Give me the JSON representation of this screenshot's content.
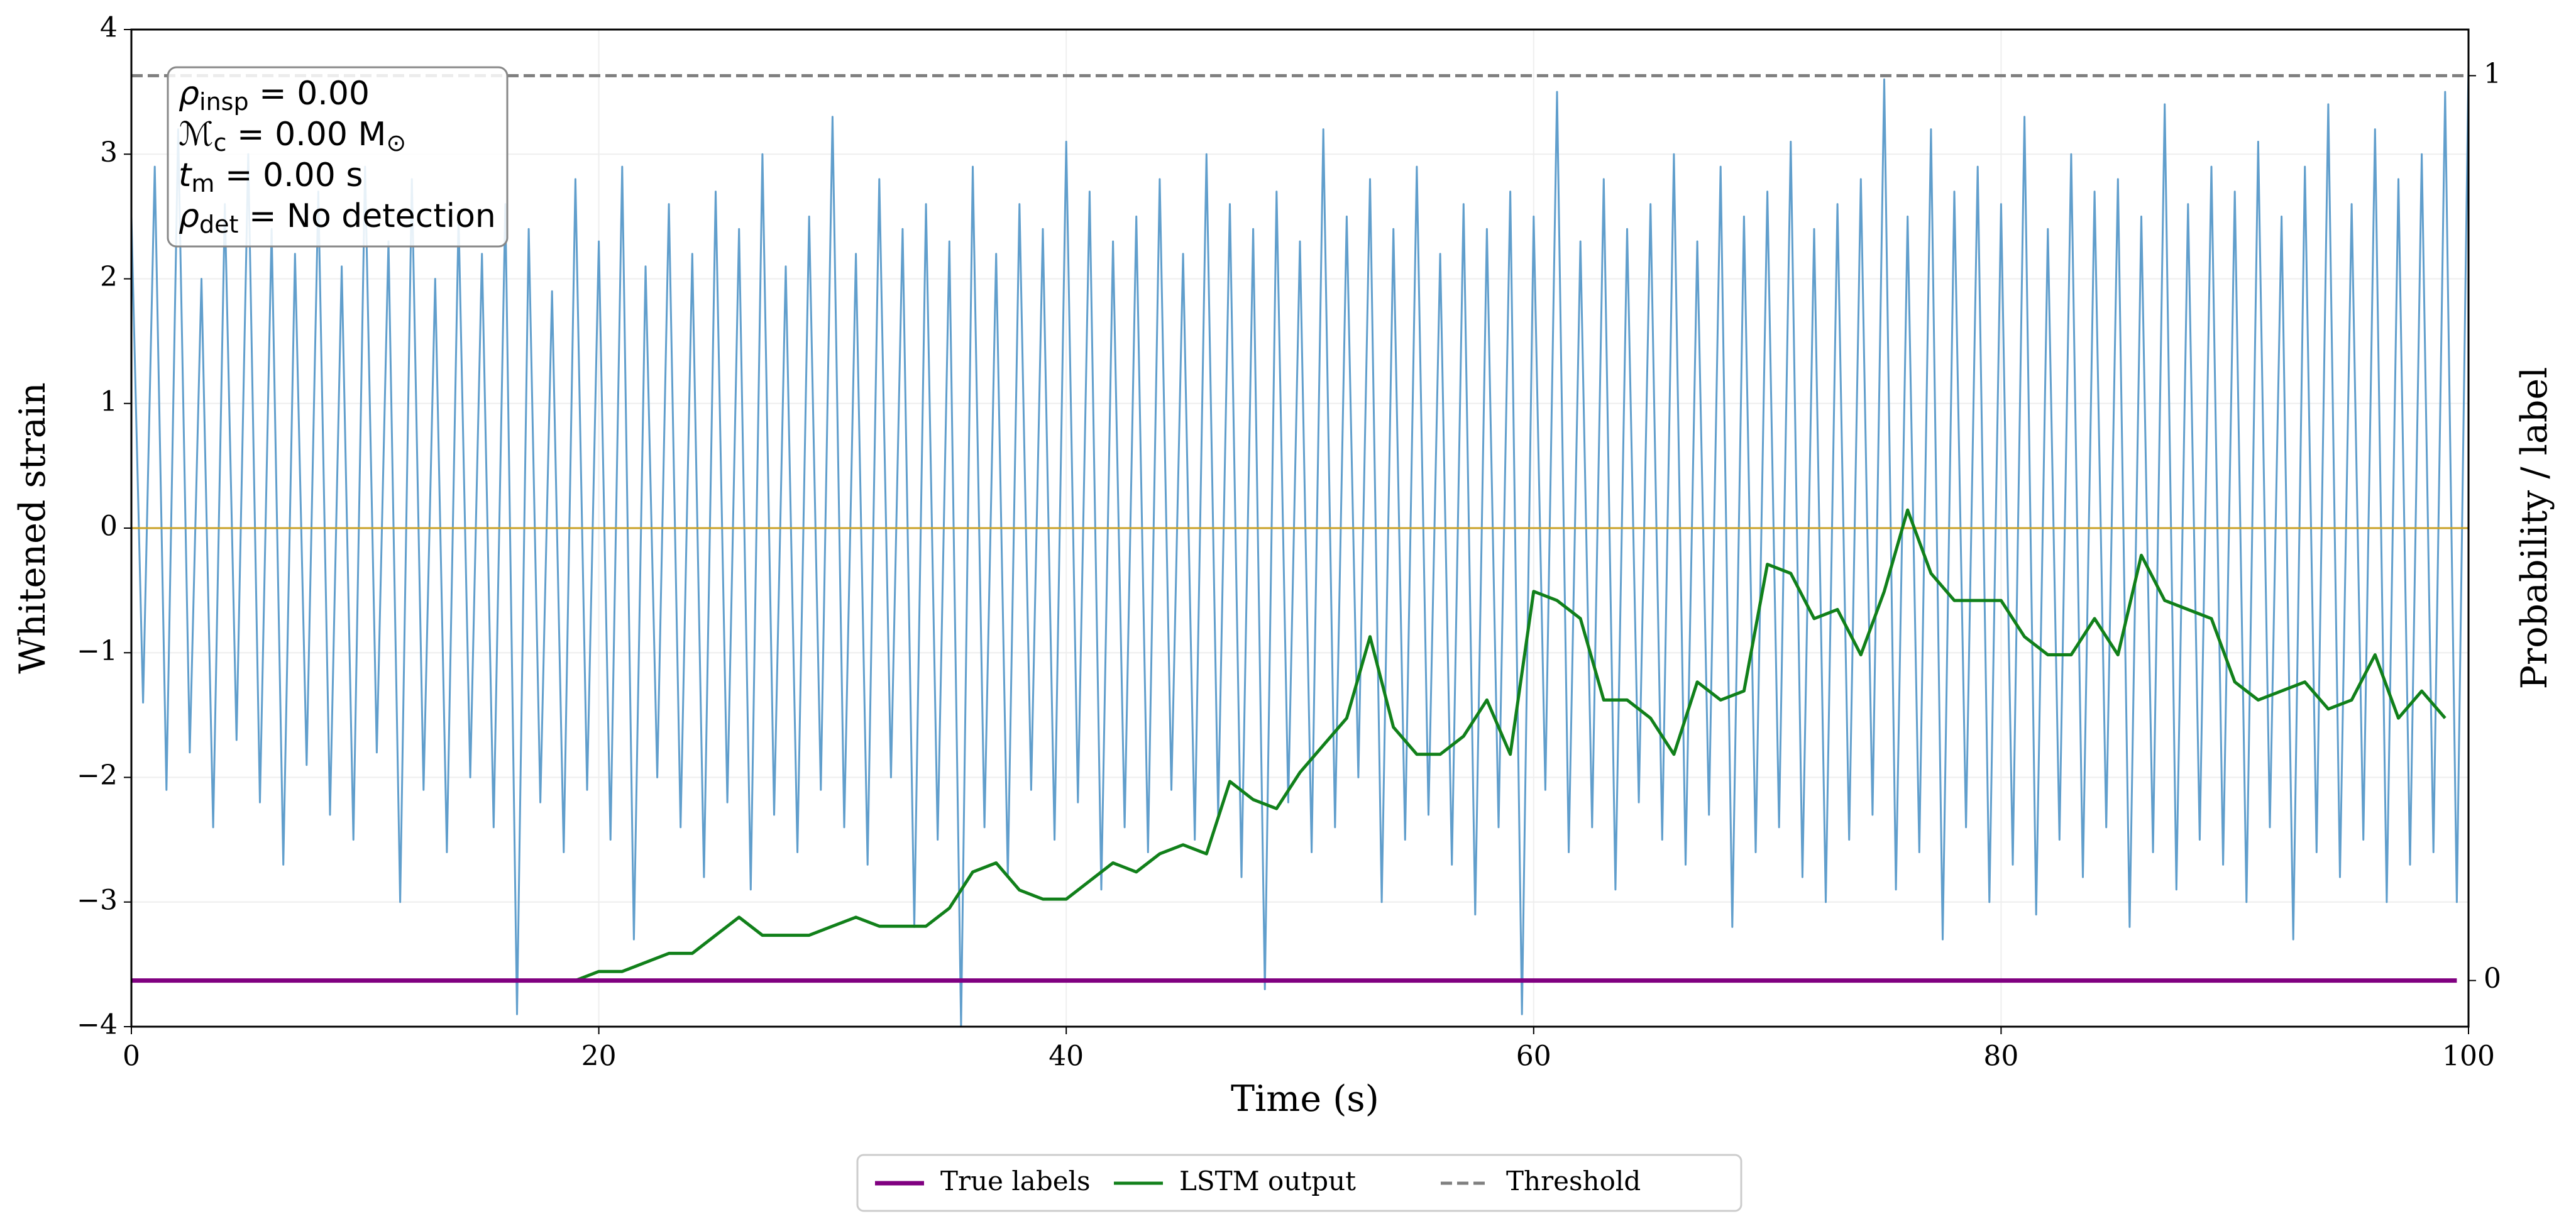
{
  "chart_data": {
    "type": "line",
    "xlabel": "Time (s)",
    "ylabel": "Whitened strain",
    "y2label": "Probability / label",
    "xlim": [
      0,
      100
    ],
    "xticks": [
      0,
      20,
      40,
      60,
      80,
      100
    ],
    "ylim": [
      -4,
      4
    ],
    "yticks": [
      {
        "value": -4,
        "label": "−4"
      },
      {
        "value": -3,
        "label": "−3"
      },
      {
        "value": -2,
        "label": "−2"
      },
      {
        "value": -1,
        "label": "−1"
      },
      0,
      1,
      2,
      3,
      4
    ],
    "y2lim": [
      -0.051,
      1.051
    ],
    "y2ticks": [
      0,
      1
    ],
    "grid": true,
    "legend": "below",
    "hlines": [
      {
        "value": 0,
        "color": "#c9a227"
      }
    ],
    "annotation": [
      [
        "ρ",
        "insp",
        " = 0.00"
      ],
      [
        "ℳ",
        "c",
        " = 0.00 M",
        "⊙"
      ],
      [
        "t",
        "m",
        " = 0.00 s"
      ],
      [
        "ρ",
        "det",
        " = No detection"
      ]
    ],
    "series": [
      {
        "color": "#5799c9",
        "x": [
          0,
          0.5,
          1,
          1.5,
          2,
          2.5,
          3,
          3.5,
          4,
          4.5,
          5,
          5.5,
          6,
          6.5,
          7,
          7.5,
          8,
          8.5,
          9,
          9.5,
          10,
          10.5,
          11,
          11.5,
          12,
          12.5,
          13,
          13.5,
          14,
          14.5,
          15,
          15.5,
          16,
          16.5,
          17,
          17.5,
          18,
          18.5,
          19,
          19.5,
          20,
          20.5,
          21,
          21.5,
          22,
          22.5,
          23,
          23.5,
          24,
          24.5,
          25,
          25.5,
          26,
          26.5,
          27,
          27.5,
          28,
          28.5,
          29,
          29.5,
          30,
          30.5,
          31,
          31.5,
          32,
          32.5,
          33,
          33.5,
          34,
          34.5,
          35,
          35.5,
          36,
          36.5,
          37,
          37.5,
          38,
          38.5,
          39,
          39.5,
          40,
          40.5,
          41,
          41.5,
          42,
          42.5,
          43,
          43.5,
          44,
          44.5,
          45,
          45.5,
          46,
          46.5,
          47,
          47.5,
          48,
          48.5,
          49,
          49.5,
          50,
          50.5,
          51,
          51.5,
          52,
          52.5,
          53,
          53.5,
          54,
          54.5,
          55,
          55.5,
          56,
          56.5,
          57,
          57.5,
          58,
          58.5,
          59,
          59.5,
          60,
          60.5,
          61,
          61.5,
          62,
          62.5,
          63,
          63.5,
          64,
          64.5,
          65,
          65.5,
          66,
          66.5,
          67,
          67.5,
          68,
          68.5,
          69,
          69.5,
          70,
          70.5,
          71,
          71.5,
          72,
          72.5,
          73,
          73.5,
          74,
          74.5,
          75,
          75.5,
          76,
          76.5,
          77,
          77.5,
          78,
          78.5,
          79,
          79.5,
          80,
          80.5,
          81,
          81.5,
          82,
          82.5,
          83,
          83.5,
          84,
          84.5,
          85,
          85.5,
          86,
          86.5,
          87,
          87.5,
          88,
          88.5,
          89,
          89.5,
          90,
          90.5,
          91,
          91.5,
          92,
          92.5,
          93,
          93.5,
          94,
          94.5,
          95,
          95.5,
          96,
          96.5,
          97,
          97.5,
          98,
          98.5,
          99,
          99.5,
          100
        ],
        "values": [
          2.5,
          -1.4,
          2.9,
          -2.1,
          3.2,
          -1.8,
          2.0,
          -2.4,
          2.6,
          -1.7,
          3.0,
          -2.2,
          2.4,
          -2.7,
          2.2,
          -1.9,
          2.7,
          -2.3,
          2.1,
          -2.5,
          2.9,
          -1.8,
          2.3,
          -3.0,
          2.8,
          -2.1,
          2.0,
          -2.6,
          2.5,
          -2.0,
          2.2,
          -2.4,
          2.6,
          -3.9,
          2.4,
          -2.2,
          1.9,
          -2.6,
          2.8,
          -2.1,
          2.3,
          -2.5,
          2.9,
          -3.3,
          2.1,
          -2.0,
          2.6,
          -2.4,
          2.2,
          -2.8,
          2.7,
          -2.2,
          2.4,
          -2.9,
          3.0,
          -2.3,
          2.1,
          -2.6,
          2.5,
          -2.1,
          3.3,
          -2.4,
          2.2,
          -2.7,
          2.8,
          -2.0,
          2.4,
          -3.2,
          2.6,
          -2.5,
          2.3,
          -4.0,
          2.9,
          -2.4,
          2.2,
          -2.8,
          2.6,
          -2.1,
          2.4,
          -2.5,
          3.1,
          -2.2,
          2.7,
          -2.9,
          2.3,
          -2.4,
          2.5,
          -2.6,
          2.8,
          -2.1,
          2.2,
          -2.5,
          3.0,
          -2.3,
          2.6,
          -2.8,
          2.4,
          -3.7,
          2.7,
          -2.2,
          2.3,
          -2.6,
          3.2,
          -2.4,
          2.5,
          -2.0,
          2.8,
          -3.0,
          2.4,
          -2.5,
          2.9,
          -2.3,
          2.2,
          -2.7,
          2.6,
          -3.1,
          2.4,
          -2.4,
          2.7,
          -3.9,
          2.5,
          -2.1,
          3.5,
          -2.6,
          2.3,
          -2.4,
          2.8,
          -2.9,
          2.4,
          -2.2,
          2.6,
          -2.5,
          3.0,
          -2.7,
          2.3,
          -2.3,
          2.9,
          -3.2,
          2.5,
          -2.6,
          2.7,
          -2.4,
          3.1,
          -2.8,
          2.4,
          -3.0,
          2.6,
          -2.5,
          2.8,
          -2.3,
          3.6,
          -2.9,
          2.5,
          -2.6,
          3.2,
          -3.3,
          2.7,
          -2.4,
          2.9,
          -3.0,
          2.6,
          -2.7,
          3.3,
          -3.1,
          2.4,
          -2.5,
          3.0,
          -2.8,
          2.7,
          -2.4,
          2.8,
          -3.2,
          2.5,
          -2.6,
          3.4,
          -2.9,
          2.6,
          -2.5,
          2.9,
          -2.7,
          2.7,
          -3.0,
          3.1,
          -2.4,
          2.5,
          -3.3,
          2.9,
          -2.6,
          3.4,
          -2.8,
          2.6,
          -2.5,
          3.2,
          -3.0,
          2.8,
          -2.7,
          3.0,
          -2.6,
          3.5,
          -3.0,
          3.7
        ]
      },
      {
        "name": "Threshold",
        "color": "#7f7f7f",
        "dash": true,
        "axis": "y2",
        "x": [
          0,
          100
        ],
        "values": [
          1,
          1
        ]
      },
      {
        "name": "LSTM output",
        "color": "#11801a",
        "axis": "y2",
        "x": [
          0,
          1,
          2,
          3,
          4,
          5,
          6,
          7,
          8,
          9,
          10,
          11,
          12,
          13,
          14,
          15,
          16,
          17,
          18,
          19,
          20,
          21,
          22,
          23,
          24,
          25,
          26,
          27,
          28,
          29,
          30,
          31,
          32,
          33,
          34,
          35,
          36,
          37,
          38,
          39,
          40,
          41,
          42,
          43,
          44,
          45,
          46,
          47,
          48,
          49,
          50,
          51,
          52,
          53,
          54,
          55,
          56,
          57,
          58,
          59,
          60,
          61,
          62,
          63,
          64,
          65,
          66,
          67,
          68,
          69,
          70,
          71,
          72,
          73,
          74,
          75,
          76,
          77,
          78,
          79,
          80,
          81,
          82,
          83,
          84,
          85,
          86,
          87,
          88,
          89,
          90,
          91,
          92,
          93,
          94,
          95,
          96,
          97,
          98,
          99
        ],
        "values": [
          0,
          0,
          0,
          0,
          0,
          0,
          0,
          0,
          0,
          0,
          0,
          0,
          0,
          0,
          0,
          0,
          0,
          0,
          0,
          0,
          0.01,
          0.01,
          0.02,
          0.03,
          0.03,
          0.05,
          0.07,
          0.05,
          0.05,
          0.05,
          0.06,
          0.07,
          0.06,
          0.06,
          0.06,
          0.08,
          0.12,
          0.13,
          0.1,
          0.09,
          0.09,
          0.11,
          0.13,
          0.12,
          0.14,
          0.15,
          0.14,
          0.22,
          0.2,
          0.19,
          0.23,
          0.26,
          0.29,
          0.38,
          0.28,
          0.25,
          0.25,
          0.27,
          0.31,
          0.25,
          0.43,
          0.42,
          0.4,
          0.31,
          0.31,
          0.29,
          0.25,
          0.33,
          0.31,
          0.32,
          0.46,
          0.45,
          0.4,
          0.41,
          0.36,
          0.43,
          0.52,
          0.45,
          0.42,
          0.42,
          0.42,
          0.38,
          0.36,
          0.36,
          0.4,
          0.36,
          0.47,
          0.42,
          0.41,
          0.4,
          0.33,
          0.31,
          0.32,
          0.33,
          0.3,
          0.31,
          0.36,
          0.29,
          0.32,
          0.29
        ]
      },
      {
        "name": "True labels",
        "color": "#800080",
        "width": 2,
        "axis": "y2",
        "x": [
          0,
          99.5
        ],
        "values": [
          0,
          0
        ]
      }
    ]
  }
}
